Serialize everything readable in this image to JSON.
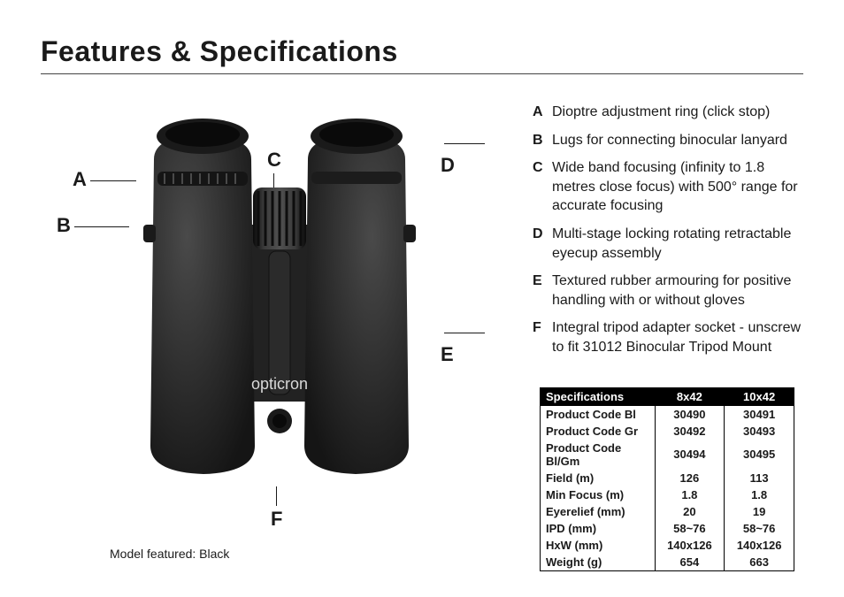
{
  "title": "Features & Specifications",
  "caption": "Model featured: Black",
  "brand": "opticron",
  "labels": {
    "A": "A",
    "B": "B",
    "C": "C",
    "D": "D",
    "E": "E",
    "F": "F"
  },
  "features": [
    {
      "letter": "A",
      "desc": "Dioptre adjustment ring (click stop)"
    },
    {
      "letter": "B",
      "desc": "Lugs for connecting binocular lanyard"
    },
    {
      "letter": "C",
      "desc": "Wide band focusing (infinity to 1.8 metres close focus) with 500° range for accurate focusing"
    },
    {
      "letter": "D",
      "desc": "Multi-stage locking rotating retractable eyecup assembly"
    },
    {
      "letter": "E",
      "desc": "Textured rubber armouring for positive handling with or without gloves"
    },
    {
      "letter": "F",
      "desc": "Integral tripod adapter socket - unscrew to fit 31012 Binocular Tripod Mount"
    }
  ],
  "spec_header": {
    "c1": "Specifications",
    "c2": "8x42",
    "c3": "10x42"
  },
  "spec_rows": [
    {
      "c1": "Product Code  Bl",
      "c2": "30490",
      "c3": "30491"
    },
    {
      "c1": "Product Code  Gr",
      "c2": "30492",
      "c3": "30493"
    },
    {
      "c1": "Product Code  Bl/Gm",
      "c2": "30494",
      "c3": "30495"
    },
    {
      "c1": "Field (m)",
      "c2": "126",
      "c3": "113"
    },
    {
      "c1": "Min Focus (m)",
      "c2": "1.8",
      "c3": "1.8"
    },
    {
      "c1": "Eyerelief (mm)",
      "c2": "20",
      "c3": "19"
    },
    {
      "c1": "IPD (mm)",
      "c2": "58~76",
      "c3": "58~76"
    },
    {
      "c1": "HxW (mm)",
      "c2": "140x126",
      "c3": "140x126"
    },
    {
      "c1": "Weight (g)",
      "c2": "654",
      "c3": "663"
    }
  ],
  "colors": {
    "body": "#262626",
    "bodyLight": "#3a3a3a",
    "knob": "#1a1a1a",
    "ring": "#2d2d2d",
    "logo": "#d8d8d8"
  }
}
